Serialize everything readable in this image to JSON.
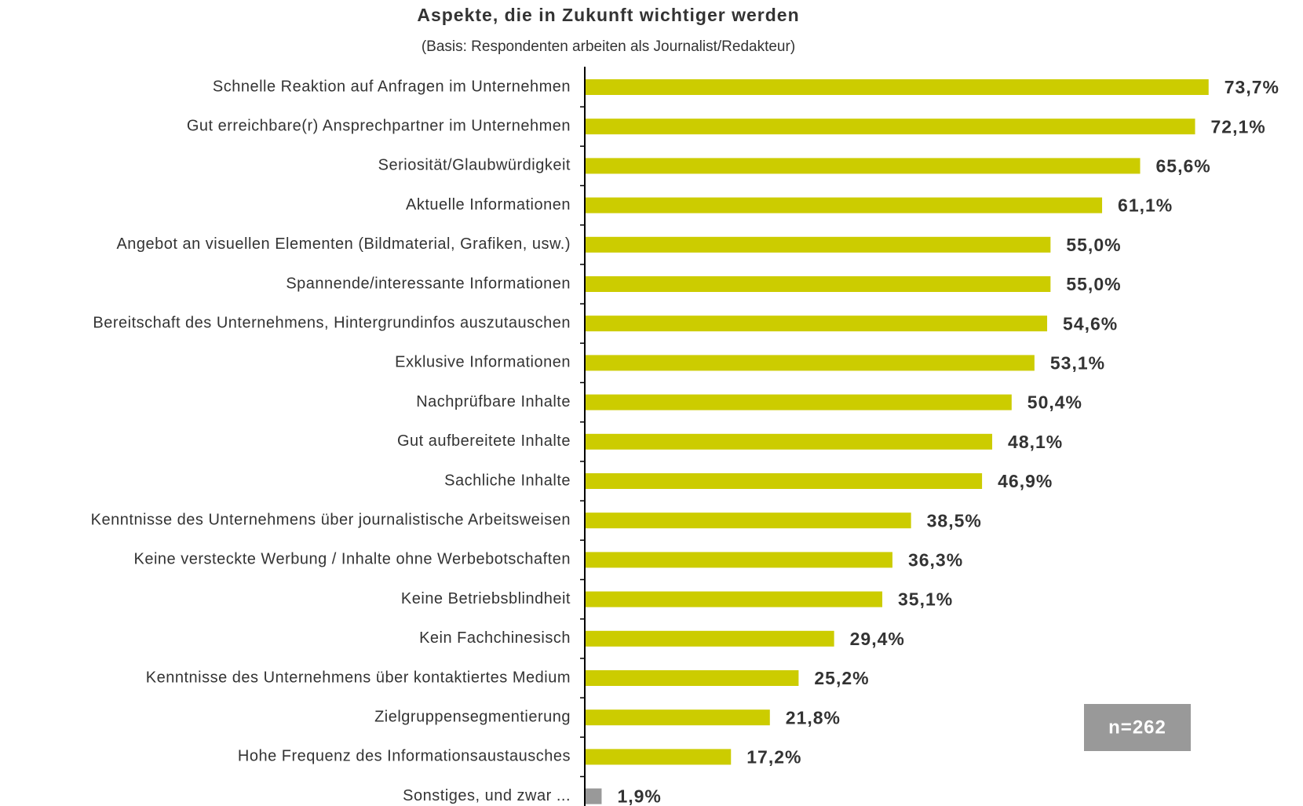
{
  "chart_data": {
    "type": "bar",
    "orientation": "horizontal",
    "title": "Aspekte, die in Zukunft wichtiger werden",
    "subtitle": "(Basis: Respondenten arbeiten als Journalist/Redakteur)",
    "categories": [
      "Schnelle Reaktion auf Anfragen im Unternehmen",
      "Gut erreichbare(r) Ansprechpartner im Unternehmen",
      "Seriosität/Glaubwürdigkeit",
      "Aktuelle Informationen",
      "Angebot an visuellen Elementen (Bildmaterial, Grafiken, usw.)",
      "Spannende/interessante Informationen",
      "Bereitschaft des Unternehmens, Hintergrundinfos auszutauschen",
      "Exklusive Informationen",
      "Nachprüfbare Inhalte",
      "Gut aufbereitete Inhalte",
      "Sachliche Inhalte",
      "Kenntnisse des Unternehmens über journalistische Arbeitsweisen",
      "Keine versteckte Werbung / Inhalte ohne Werbebotschaften",
      "Keine Betriebsblindheit",
      "Kein Fachchinesisch",
      "Kenntnisse des Unternehmens über kontaktiertes Medium",
      "Zielgruppensegmentierung",
      "Hohe Frequenz des Informationsaustausches",
      "Sonstiges, und zwar ..."
    ],
    "values": [
      73.7,
      72.1,
      65.6,
      61.1,
      55.0,
      55.0,
      54.6,
      53.1,
      50.4,
      48.1,
      46.9,
      38.5,
      36.3,
      35.1,
      29.4,
      25.2,
      21.8,
      17.2,
      1.9
    ],
    "value_labels": [
      "73,7%",
      "72,1%",
      "65,6%",
      "61,1%",
      "55,0%",
      "55,0%",
      "54,6%",
      "53,1%",
      "50,4%",
      "48,1%",
      "46,9%",
      "38,5%",
      "36,3%",
      "35,1%",
      "29,4%",
      "25,2%",
      "21,8%",
      "17,2%",
      "1,9%"
    ],
    "colors": [
      "#cccc00",
      "#cccc00",
      "#cccc00",
      "#cccc00",
      "#cccc00",
      "#cccc00",
      "#cccc00",
      "#cccc00",
      "#cccc00",
      "#cccc00",
      "#cccc00",
      "#cccc00",
      "#cccc00",
      "#cccc00",
      "#cccc00",
      "#cccc00",
      "#cccc00",
      "#cccc00",
      "#999999"
    ],
    "annotation": "n=262"
  }
}
